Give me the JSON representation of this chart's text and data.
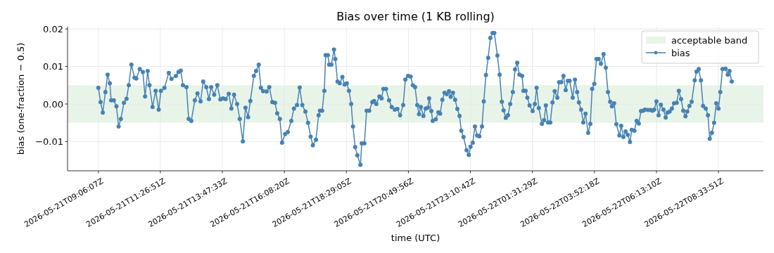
{
  "chart_data": {
    "type": "line",
    "title": "Bias over time (1 KB rolling)",
    "xlabel": "time (UTC)",
    "ylabel": "bias (one-fraction − 0.5)",
    "xlim": [
      "2026-05-21T07:56",
      "2026-05-22T10:16"
    ],
    "xticks": [
      {
        "value": "2026-05-21T09:06:07",
        "label": "2026-05-21T09:06:07Z"
      },
      {
        "value": "2026-05-21T11:26:51",
        "label": "2026-05-21T11:26:51Z"
      },
      {
        "value": "2026-05-21T13:47:33",
        "label": "2026-05-21T13:47:33Z"
      },
      {
        "value": "2026-05-21T16:08:20",
        "label": "2026-05-21T16:08:20Z"
      },
      {
        "value": "2026-05-21T18:29:05",
        "label": "2026-05-21T18:29:05Z"
      },
      {
        "value": "2026-05-21T20:49:56",
        "label": "2026-05-21T20:49:56Z"
      },
      {
        "value": "2026-05-21T23:10:42",
        "label": "2026-05-21T23:10:42Z"
      },
      {
        "value": "2026-05-22T01:31:29",
        "label": "2026-05-22T01:31:29Z"
      },
      {
        "value": "2026-05-22T03:52:18",
        "label": "2026-05-22T03:52:18Z"
      },
      {
        "value": "2026-05-22T06:13:10",
        "label": "2026-05-22T06:13:10Z"
      },
      {
        "value": "2026-05-22T08:33:51",
        "label": "2026-05-22T08:33:51Z"
      }
    ],
    "ylim": [
      -0.0178,
      0.0206
    ],
    "yticks": [
      {
        "value": -0.01,
        "label": "−0.01"
      },
      {
        "value": 0,
        "label": "0.00"
      },
      {
        "value": 0.01,
        "label": "0.01"
      },
      {
        "value": 0.02,
        "label": "0.02"
      }
    ],
    "grid": true,
    "legend": "top right",
    "marker": "circle",
    "line_style": "solid",
    "bands": [
      {
        "axis": "y",
        "from": -0.005,
        "to": 0.005,
        "label": "acceptable band",
        "color": "#e9f4e9"
      }
    ],
    "series": [
      {
        "name": "bias",
        "color": "#4682b4",
        "x": [
          "2026-05-21T09:06",
          "2026-05-21T09:11",
          "2026-05-21T09:16",
          "2026-05-21T09:22",
          "2026-05-21T09:27",
          "2026-05-21T09:32",
          "2026-05-21T09:35",
          "2026-05-21T09:41",
          "2026-05-21T09:47",
          "2026-05-21T09:52",
          "2026-05-21T09:57",
          "2026-05-21T10:04",
          "2026-05-21T10:10",
          "2026-05-21T10:15",
          "2026-05-21T10:21",
          "2026-05-21T10:28",
          "2026-05-21T10:32",
          "2026-05-21T10:40",
          "2026-05-21T10:47",
          "2026-05-21T10:52",
          "2026-05-21T10:58",
          "2026-05-21T11:02",
          "2026-05-21T11:09",
          "2026-05-21T11:16",
          "2026-05-21T11:23",
          "2026-05-21T11:28",
          "2026-05-21T11:36",
          "2026-05-21T11:46",
          "2026-05-21T11:52",
          "2026-05-21T12:02",
          "2026-05-21T12:08",
          "2026-05-21T12:13",
          "2026-05-21T12:18",
          "2026-05-21T12:26",
          "2026-05-21T12:31",
          "2026-05-21T12:37",
          "2026-05-21T12:45",
          "2026-05-21T12:51",
          "2026-05-21T12:58",
          "2026-05-21T13:04",
          "2026-05-21T13:11",
          "2026-05-21T13:17",
          "2026-05-21T13:22",
          "2026-05-21T13:29",
          "2026-05-21T13:36",
          "2026-05-21T13:43",
          "2026-05-21T13:49",
          "2026-05-21T13:55",
          "2026-05-21T14:02",
          "2026-05-21T14:08",
          "2026-05-21T14:14",
          "2026-05-21T14:21",
          "2026-05-21T14:27",
          "2026-05-21T14:34",
          "2026-05-21T14:40",
          "2026-05-21T14:46",
          "2026-05-21T14:51",
          "2026-05-21T14:59",
          "2026-05-21T15:04",
          "2026-05-21T15:10",
          "2026-05-21T15:15",
          "2026-05-21T15:20",
          "2026-05-21T15:28",
          "2026-05-21T15:34",
          "2026-05-21T15:41",
          "2026-05-21T15:47",
          "2026-05-21T15:52",
          "2026-05-21T15:58",
          "2026-05-21T16:03",
          "2026-05-21T16:10",
          "2026-05-21T16:16",
          "2026-05-21T16:24",
          "2026-05-21T16:30",
          "2026-05-21T16:37",
          "2026-05-21T16:43",
          "2026-05-21T16:49",
          "2026-05-21T16:56",
          "2026-05-21T17:02",
          "2026-05-21T17:08",
          "2026-05-21T17:13",
          "2026-05-21T17:20",
          "2026-05-21T17:26",
          "2026-05-21T17:29",
          "2026-05-21T17:34",
          "2026-05-21T17:39",
          "2026-05-21T17:42",
          "2026-05-21T17:47",
          "2026-05-21T17:50",
          "2026-05-21T17:55",
          "2026-05-21T18:01",
          "2026-05-21T18:04",
          "2026-05-21T18:09",
          "2026-05-21T18:14",
          "2026-05-21T18:20",
          "2026-05-21T18:25",
          "2026-05-21T18:30",
          "2026-05-21T18:35",
          "2026-05-21T18:40",
          "2026-05-21T18:44",
          "2026-05-21T18:49",
          "2026-05-21T18:54",
          "2026-05-21T19:01",
          "2026-05-21T19:04",
          "2026-05-21T19:10",
          "2026-05-21T19:15",
          "2026-05-21T19:21",
          "2026-05-21T19:28",
          "2026-05-21T19:32",
          "2026-05-21T19:37",
          "2026-05-21T19:44",
          "2026-05-21T19:49",
          "2026-05-21T19:53",
          "2026-05-21T19:59",
          "2026-05-21T20:06",
          "2026-05-21T20:12",
          "2026-05-21T20:19",
          "2026-05-21T20:25",
          "2026-05-21T20:31",
          "2026-05-21T20:38",
          "2026-05-21T20:43",
          "2026-05-21T20:49",
          "2026-05-21T20:55",
          "2026-05-21T21:00",
          "2026-05-21T21:05",
          "2026-05-21T21:10",
          "2026-05-21T21:14",
          "2026-05-21T21:18",
          "2026-05-21T21:24",
          "2026-05-21T21:29",
          "2026-05-21T21:34",
          "2026-05-21T21:37",
          "2026-05-21T21:42",
          "2026-05-21T21:45",
          "2026-05-21T21:52",
          "2026-05-21T21:58",
          "2026-05-21T22:02",
          "2026-05-21T22:07",
          "2026-05-21T22:12",
          "2026-05-21T22:17",
          "2026-05-21T22:22",
          "2026-05-21T22:26",
          "2026-05-21T22:31",
          "2026-05-21T22:36",
          "2026-05-21T22:41",
          "2026-05-21T22:46",
          "2026-05-21T22:50",
          "2026-05-21T22:55",
          "2026-05-21T23:02",
          "2026-05-21T23:07",
          "2026-05-21T23:11",
          "2026-05-21T23:16",
          "2026-05-21T23:21",
          "2026-05-21T23:26",
          "2026-05-21T23:31",
          "2026-05-21T23:37",
          "2026-05-21T23:41",
          "2026-05-21T23:46",
          "2026-05-21T23:51",
          "2026-05-21T23:56",
          "2026-05-22T00:01",
          "2026-05-22T00:05",
          "2026-05-22T00:12",
          "2026-05-22T00:17",
          "2026-05-22T00:22",
          "2026-05-22T00:26",
          "2026-05-22T00:31",
          "2026-05-22T00:36",
          "2026-05-22T00:41",
          "2026-05-22T00:47",
          "2026-05-22T00:52",
          "2026-05-22T00:57",
          "2026-05-22T01:02",
          "2026-05-22T01:08",
          "2026-05-22T01:11",
          "2026-05-22T01:16",
          "2026-05-22T01:20",
          "2026-05-22T01:25",
          "2026-05-22T01:32",
          "2026-05-22T01:37",
          "2026-05-22T01:41",
          "2026-05-22T01:46",
          "2026-05-22T01:53",
          "2026-05-22T01:58",
          "2026-05-22T02:02",
          "2026-05-22T02:07",
          "2026-05-22T02:12",
          "2026-05-22T02:17",
          "2026-05-22T02:22",
          "2026-05-22T02:28",
          "2026-05-22T02:32",
          "2026-05-22T02:37",
          "2026-05-22T02:42",
          "2026-05-22T02:47",
          "2026-05-22T02:52",
          "2026-05-22T02:56",
          "2026-05-22T03:03",
          "2026-05-22T03:08",
          "2026-05-22T03:13",
          "2026-05-22T03:17",
          "2026-05-22T03:22",
          "2026-05-22T03:27",
          "2026-05-22T03:32",
          "2026-05-22T03:38",
          "2026-05-22T03:43",
          "2026-05-22T03:47",
          "2026-05-22T03:52",
          "2026-05-22T03:57",
          "2026-05-22T04:02",
          "2026-05-22T04:07",
          "2026-05-22T04:13",
          "2026-05-22T04:18",
          "2026-05-22T04:23",
          "2026-05-22T04:28",
          "2026-05-22T04:32",
          "2026-05-22T04:37",
          "2026-05-22T04:42",
          "2026-05-22T04:49",
          "2026-05-22T04:53",
          "2026-05-22T04:58",
          "2026-05-22T05:03",
          "2026-05-22T05:08",
          "2026-05-22T05:13",
          "2026-05-22T05:17",
          "2026-05-22T05:23",
          "2026-05-22T05:28",
          "2026-05-22T05:33",
          "2026-05-22T05:38",
          "2026-05-22T05:43",
          "2026-05-22T05:47",
          "2026-05-22T05:54",
          "2026-05-22T05:59",
          "2026-05-22T06:04",
          "2026-05-22T06:08",
          "2026-05-22T06:13",
          "2026-05-22T06:18",
          "2026-05-22T06:23",
          "2026-05-22T06:29",
          "2026-05-22T06:34",
          "2026-05-22T06:38",
          "2026-05-22T06:43",
          "2026-05-22T06:48",
          "2026-05-22T06:53",
          "2026-05-22T06:59",
          "2026-05-22T07:04",
          "2026-05-22T07:09",
          "2026-05-22T07:14",
          "2026-05-22T07:19",
          "2026-05-22T07:23",
          "2026-05-22T07:28",
          "2026-05-22T07:33",
          "2026-05-22T07:40",
          "2026-05-22T07:44",
          "2026-05-22T07:49",
          "2026-05-22T07:54",
          "2026-05-22T07:59",
          "2026-05-22T08:05",
          "2026-05-22T08:10",
          "2026-05-22T08:14",
          "2026-05-22T08:19",
          "2026-05-22T08:24",
          "2026-05-22T08:29",
          "2026-05-22T08:34",
          "2026-05-22T08:38",
          "2026-05-22T08:43",
          "2026-05-22T08:50",
          "2026-05-22T08:55",
          "2026-05-22T08:59",
          "2026-05-22T09:04"
        ],
        "values": [
          0.0043,
          0.0005,
          -0.0023,
          0.0032,
          0.0078,
          0.0055,
          0.001,
          0.001,
          -0.0006,
          -0.006,
          -0.004,
          0.0003,
          0.0014,
          0.005,
          0.0105,
          0.007,
          0.0068,
          0.0093,
          0.0085,
          0.002,
          0.0088,
          0.005,
          -0.0008,
          0.0035,
          -0.0015,
          0.0035,
          0.0043,
          0.0083,
          0.0067,
          0.0075,
          0.0085,
          0.0089,
          0.005,
          0.0045,
          -0.004,
          -0.0045,
          0.001,
          0.0028,
          0.0007,
          0.006,
          0.0045,
          0.0013,
          0.0045,
          0.0025,
          0.005,
          0.0012,
          0.0015,
          0.0013,
          0.0027,
          -0.0012,
          0.0025,
          0.0,
          -0.004,
          -0.01,
          -0.001,
          -0.0035,
          0.0008,
          0.0075,
          0.0088,
          0.0105,
          0.0043,
          0.0034,
          0.0033,
          0.0045,
          0.0005,
          0.0003,
          -0.0025,
          -0.004,
          -0.0103,
          -0.008,
          -0.0075,
          -0.0045,
          -0.0012,
          -0.0003,
          0.0044,
          -0.0003,
          -0.002,
          -0.005,
          -0.0087,
          -0.011,
          -0.0095,
          -0.003,
          -0.0018,
          -0.0018,
          0.0035,
          0.013,
          0.013,
          0.0105,
          0.0105,
          0.0145,
          0.012,
          0.006,
          0.0055,
          0.0072,
          0.0052,
          0.0055,
          0.0035,
          0.0,
          -0.006,
          -0.0115,
          -0.0137,
          -0.0162,
          -0.0105,
          -0.0105,
          -0.0018,
          -0.0018,
          0.0005,
          0.0008,
          0.0,
          0.002,
          0.0015,
          0.004,
          0.004,
          0.001,
          -0.0008,
          -0.0015,
          -0.0013,
          -0.003,
          -0.0003,
          0.0065,
          0.0075,
          0.0073,
          0.005,
          0.0045,
          -0.0003,
          -0.0027,
          -0.0008,
          -0.0032,
          -0.0012,
          -0.001,
          0.0015,
          -0.0019,
          -0.0045,
          -0.0041,
          -0.0022,
          -0.0026,
          0.0011,
          0.003,
          0.0026,
          0.0034,
          0.0019,
          0.003,
          0.0011,
          -0.0013,
          -0.0032,
          -0.0071,
          -0.0088,
          -0.0123,
          -0.0136,
          -0.0114,
          -0.0103,
          -0.006,
          -0.0084,
          -0.0086,
          -0.006,
          0.0007,
          0.0077,
          0.0123,
          0.0176,
          0.0189,
          0.0189,
          0.0129,
          0.0078,
          0.0006,
          -0.0017,
          -0.0037,
          -0.003,
          0.0,
          0.0032,
          0.0092,
          0.011,
          0.0078,
          0.0075,
          0.0035,
          0.0035,
          0.0017,
          -0.0004,
          -0.0019,
          0.0,
          0.0043,
          -0.0011,
          -0.0053,
          -0.0043,
          -0.0004,
          -0.0049,
          -0.0049,
          0.0004,
          0.0034,
          0.0017,
          0.0058,
          0.0058,
          0.0075,
          0.0037,
          0.0062,
          0.0062,
          0.0017,
          0.0065,
          0.0032,
          0.0004,
          -0.0015,
          -0.0049,
          -0.0026,
          -0.0077,
          -0.0053,
          0.004,
          0.0054,
          0.012,
          0.012,
          0.0107,
          0.0133,
          0.0097,
          0.0032,
          0.0006,
          -0.0006,
          0.0002,
          -0.0054,
          -0.0084,
          -0.0058,
          -0.0088,
          -0.0073,
          -0.0082,
          -0.0101,
          -0.0069,
          -0.0071,
          -0.0045,
          -0.0052,
          -0.0019,
          -0.0018,
          -0.0015,
          -0.0016,
          -0.0016,
          -0.0018,
          -0.0015,
          0.0007,
          -0.003,
          -0.0002,
          -0.0015,
          -0.0036,
          -0.0023,
          -0.002,
          -0.0012,
          0.0002,
          0.0003,
          0.0035,
          0.0013,
          -0.0018,
          -0.0033,
          -0.002,
          -0.0005,
          0.0006,
          0.0063,
          0.0086,
          0.0093,
          0.0063,
          -0.0005,
          -0.0012,
          -0.003,
          -0.0093,
          -0.0077,
          -0.005,
          0.0002,
          -0.0012,
          0.0032,
          0.0093,
          0.0094,
          0.0078,
          0.0088,
          0.006
        ]
      }
    ]
  }
}
